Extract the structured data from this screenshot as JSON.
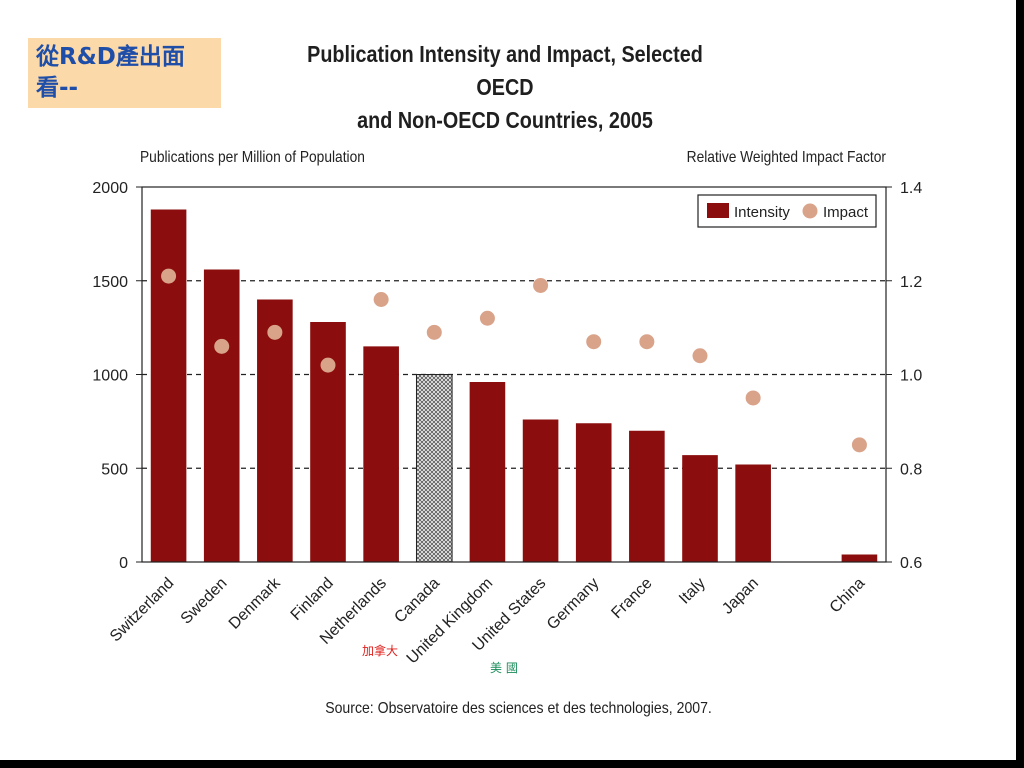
{
  "callout": {
    "line1": "從R&D產出面",
    "line2": "看--"
  },
  "notes": [
    {
      "text": "加拿大",
      "color": "#e0201c"
    },
    {
      "text": "美 國",
      "color": "#1a8c5a"
    }
  ],
  "colors": {
    "intensity": "#8b0d0d",
    "impact": "#d9a38a",
    "highlight_pattern": "canada-hatch"
  },
  "chart_data": {
    "type": "bar",
    "title_line1": "Publication Intensity and Impact, Selected OECD",
    "title_line2": "and Non-OECD Countries, 2005",
    "ylabel": "Publications per Million of Population",
    "y2label": "Relative Weighted Impact Factor",
    "source": "Source: Observatoire des sciences et des technologies, 2007.",
    "categories": [
      "Switzerland",
      "Sweden",
      "Denmark",
      "Finland",
      "Netherlands",
      "Canada",
      "United Kingdom",
      "United States",
      "Germany",
      "France",
      "Italy",
      "Japan",
      "China"
    ],
    "highlight_category": "Canada",
    "gap_before": "China",
    "series": [
      {
        "name": "Intensity",
        "type": "bar",
        "axis": "left",
        "values": [
          1880,
          1560,
          1400,
          1280,
          1150,
          1000,
          960,
          760,
          740,
          700,
          570,
          520,
          40
        ]
      },
      {
        "name": "Impact",
        "type": "scatter",
        "axis": "right",
        "values": [
          1.21,
          1.06,
          1.09,
          1.02,
          1.16,
          1.09,
          1.12,
          1.19,
          1.07,
          1.07,
          1.04,
          0.95,
          0.85
        ]
      }
    ],
    "ylim": [
      0,
      2000
    ],
    "yticks": [
      0,
      500,
      1000,
      1500,
      2000
    ],
    "y2lim": [
      0.6,
      1.4
    ],
    "y2ticks": [
      "0.6",
      "0.8",
      "1.0",
      "1.2",
      "1.4"
    ],
    "grid": "dashed at 500, 1000, 1500",
    "legend": {
      "placement": "top-right",
      "entries": [
        "Intensity",
        "Impact"
      ]
    }
  }
}
